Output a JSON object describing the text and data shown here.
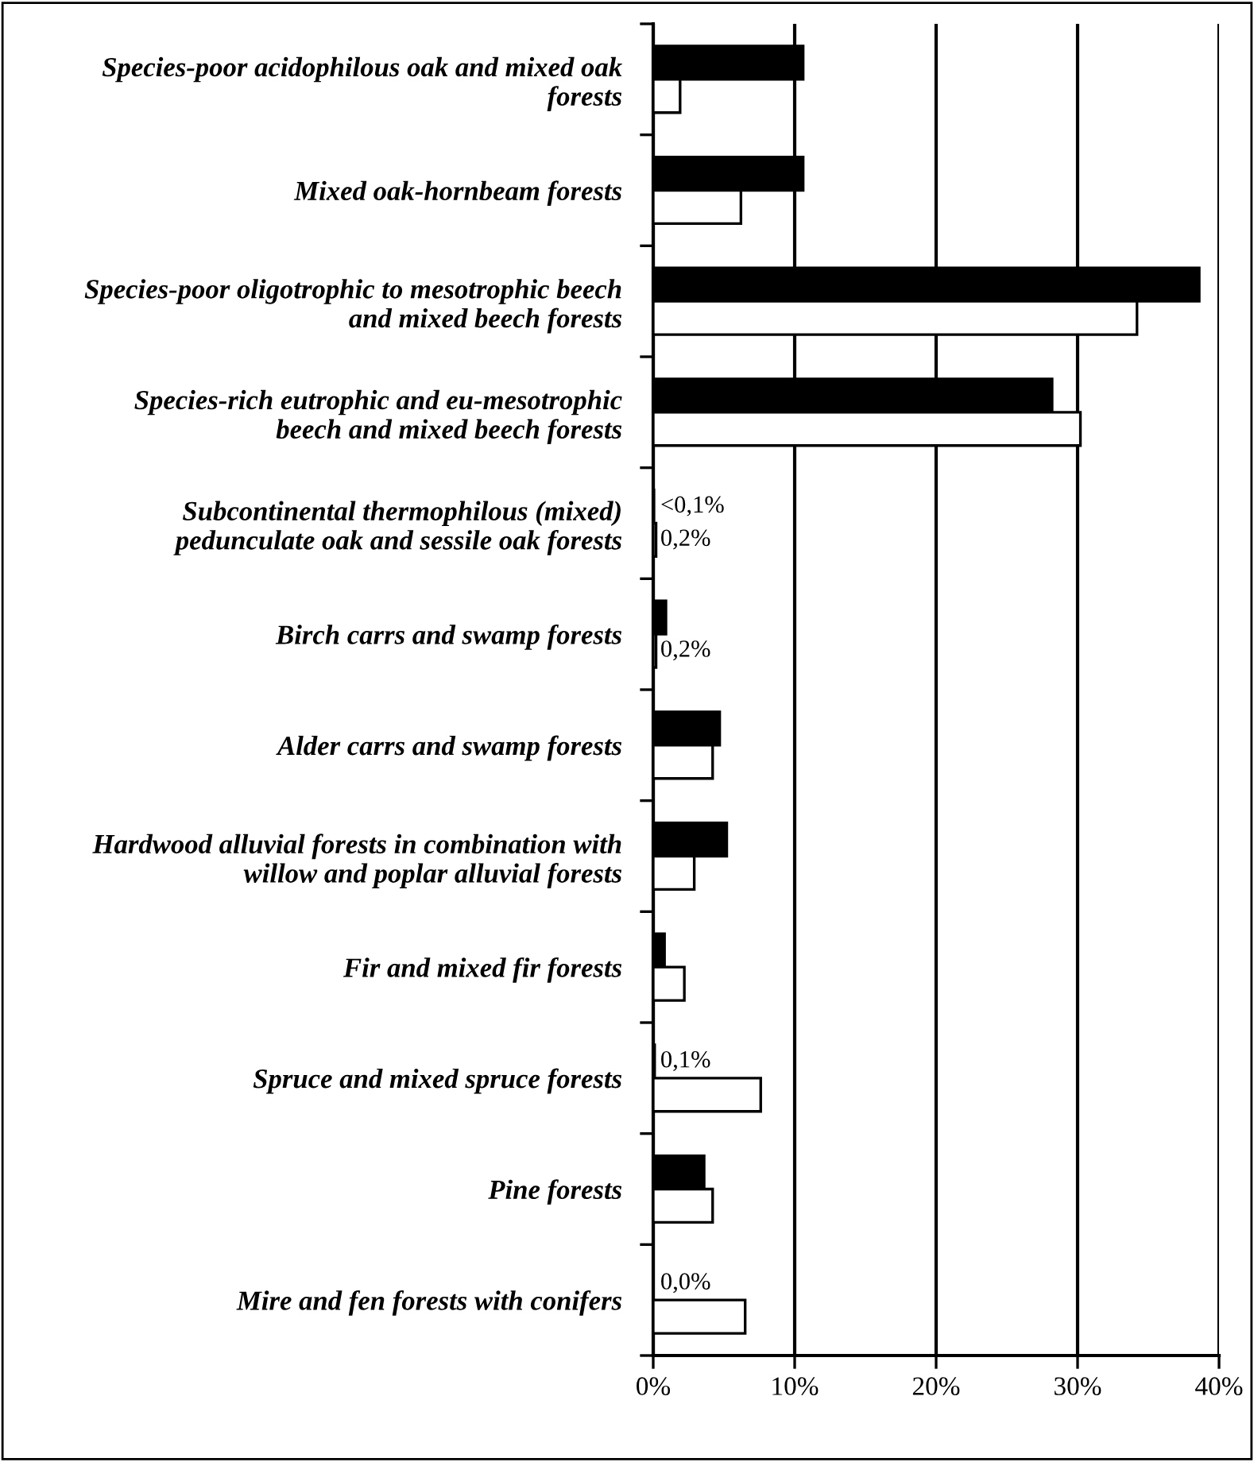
{
  "chart_data": {
    "type": "bar",
    "orientation": "horizontal",
    "categories": [
      "Species-poor acidophilous oak and mixed oak\nforests",
      "Mixed oak-hornbeam forests",
      "Species-poor oligotrophic to mesotrophic beech\nand mixed beech forests",
      "Species-rich eutrophic and eu-mesotrophic\nbeech and mixed beech forests",
      "Subcontinental thermophilous (mixed)\npedunculate oak and sessile oak forests",
      "Birch carrs and swamp forests",
      "Alder carrs and swamp forests",
      "Hardwood alluvial forests in combination with\nwillow and poplar alluvial forests",
      "Fir and mixed fir forests",
      "Spruce and mixed spruce forests",
      "Pine forests",
      "Mire and fen forests with conifers"
    ],
    "series": [
      {
        "color": "#000000",
        "values": [
          10.6,
          10.6,
          38.6,
          28.2,
          0.05,
          0.9,
          4.7,
          5.2,
          0.8,
          0.1,
          3.6,
          0.0
        ],
        "value_labels": [
          null,
          null,
          null,
          null,
          "<0,1%",
          null,
          null,
          null,
          null,
          "0,1%",
          null,
          "0,0%"
        ]
      },
      {
        "color": "#ffffff",
        "values": [
          1.9,
          6.2,
          34.2,
          30.2,
          0.2,
          0.2,
          4.2,
          2.9,
          2.2,
          7.6,
          4.2,
          6.5
        ],
        "value_labels": [
          null,
          null,
          null,
          null,
          "0,2%",
          "0,2%",
          null,
          null,
          null,
          null,
          null,
          null
        ]
      }
    ],
    "xlim": [
      0,
      40
    ],
    "xticks": [
      {
        "value": 0,
        "label": "0%"
      },
      {
        "value": 10,
        "label": "10%"
      },
      {
        "value": 20,
        "label": "20%"
      },
      {
        "value": 30,
        "label": "30%"
      },
      {
        "value": 40,
        "label": "40%"
      }
    ],
    "grid": "x"
  }
}
